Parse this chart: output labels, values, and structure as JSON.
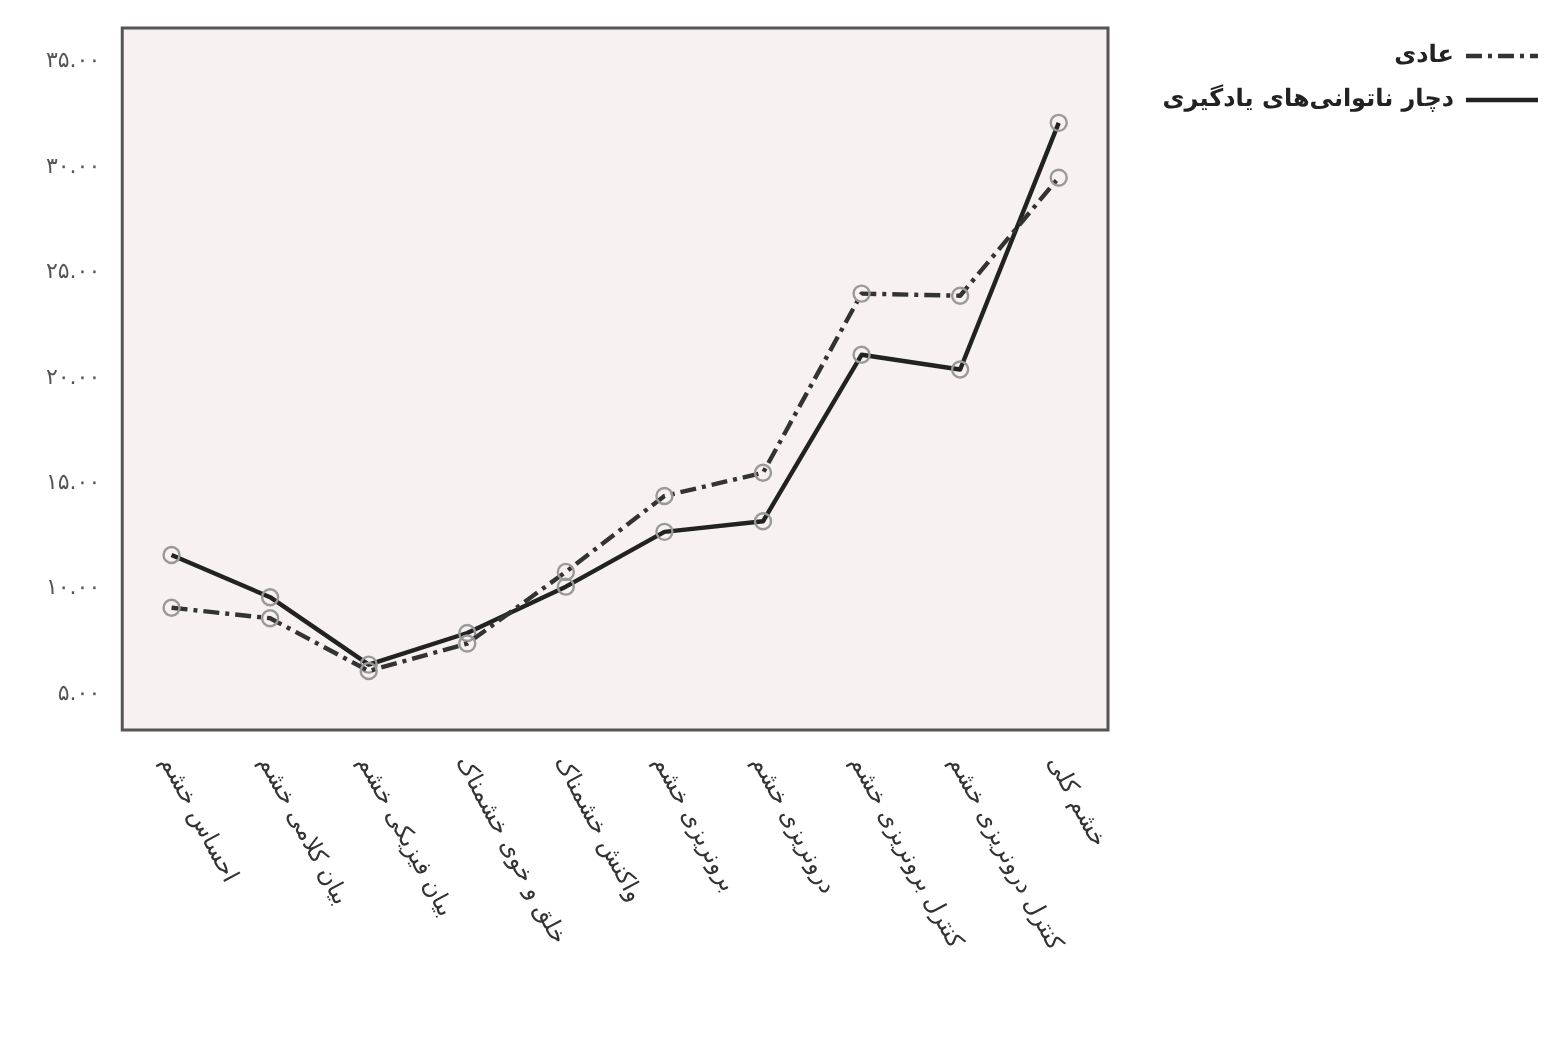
{
  "chart_data": {
    "type": "line",
    "categories": [
      "احساس خشم",
      "بیان کلامی خشم",
      "بیان فیزیکی خشم",
      "خلق و خوی خشمناک",
      "واکنش خشمناک",
      "برونریزی خشم",
      "درونریزی خشم",
      "کنترل برونریزی خشم",
      "کنترل درونریزی خشم",
      "خشم کلی"
    ],
    "series": [
      {
        "name": "عادی",
        "color": "#333333",
        "line_style": "dashed",
        "values": [
          9.1,
          8.6,
          6.1,
          7.4,
          10.8,
          14.4,
          15.5,
          24.0,
          23.9,
          29.5
        ]
      },
      {
        "name": "دچار ناتوانی‌های یادگیری",
        "color": "#222222",
        "line_style": "solid",
        "values": [
          11.6,
          9.6,
          6.4,
          7.9,
          10.1,
          12.7,
          13.2,
          21.1,
          20.4,
          32.1
        ]
      }
    ],
    "ylim": [
      3.3,
      36.6
    ],
    "yticks": [
      {
        "value": 5,
        "label": "۵.۰۰"
      },
      {
        "value": 10,
        "label": "۱۰.۰۰"
      },
      {
        "value": 15,
        "label": "۱۵.۰۰"
      },
      {
        "value": 20,
        "label": "۲۰.۰۰"
      },
      {
        "value": 25,
        "label": "۲۵.۰۰"
      },
      {
        "value": 30,
        "label": "۳۰.۰۰"
      },
      {
        "value": 35,
        "label": "۳۵.۰۰"
      }
    ],
    "grid": false,
    "legend": "top right",
    "marker": "circle"
  }
}
